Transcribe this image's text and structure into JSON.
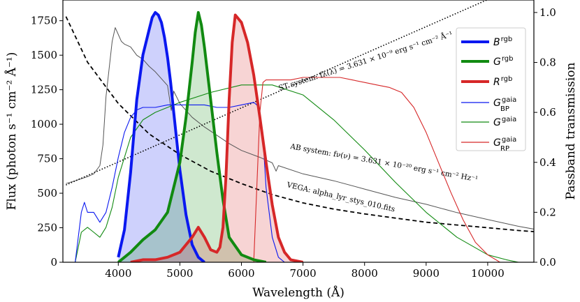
{
  "chart_data": {
    "type": "line",
    "xlabel": "Wavelength  (Å)",
    "ylabel_left": "Flux  (photon s⁻¹ cm⁻² Å⁻¹)",
    "ylabel_right": "Passband transmission",
    "xlim": [
      3100,
      10750
    ],
    "ylim_left": [
      0,
      1900
    ],
    "ylim_right": [
      0,
      1.05
    ],
    "x_ticks": [
      4000,
      5000,
      6000,
      7000,
      8000,
      9000,
      10000
    ],
    "y_ticks_left": [
      0,
      250,
      500,
      750,
      1000,
      1250,
      1500,
      1750
    ],
    "y_ticks_right": [
      "0.0",
      "0.2",
      "0.4",
      "0.6",
      "0.8",
      "1.0"
    ],
    "y_ticks_right_values": [
      0,
      0.2,
      0.4,
      0.6,
      0.8,
      1.0
    ],
    "legend_placement": "top-right",
    "colors": {
      "blue": "#0a18f0",
      "green": "#118a11",
      "red": "#d62728",
      "gray": "#555555"
    },
    "legend": [
      {
        "base": "B",
        "sup": "rgb",
        "sub": "",
        "style": "thick",
        "color": "#0a18f0"
      },
      {
        "base": "G",
        "sup": "rgb",
        "sub": "",
        "style": "thick",
        "color": "#118a11"
      },
      {
        "base": "R",
        "sup": "rgb",
        "sub": "",
        "style": "thick",
        "color": "#d62728"
      },
      {
        "base": "G",
        "sup": "gaia",
        "sub": "BP",
        "style": "thin",
        "color": "#0a18f0"
      },
      {
        "base": "G",
        "sup": "gaia",
        "sub": "",
        "style": "thin",
        "color": "#118a11"
      },
      {
        "base": "G",
        "sup": "gaia",
        "sub": "RP",
        "style": "thin",
        "color": "#d62728"
      }
    ],
    "annotations": {
      "st": "ST system: fλ(λ) = 3.631 × 10⁻⁹ erg s⁻¹ cm⁻² Å⁻¹",
      "ab": "AB system: fν(ν) = 3.631 × 10⁻²⁰ erg s⁻¹ cm⁻² Hz⁻¹",
      "vega": "VEGA: alpha_lyr_stys_010.fits"
    },
    "series": {
      "B_rgb": {
        "axis": "right",
        "x": [
          4000,
          4100,
          4200,
          4300,
          4400,
          4500,
          4550,
          4600,
          4650,
          4700,
          4750,
          4800,
          4850,
          4900,
          5000,
          5100,
          5200,
          5300,
          5400
        ],
        "y": [
          0.02,
          0.13,
          0.36,
          0.65,
          0.83,
          0.93,
          0.98,
          1.0,
          0.99,
          0.96,
          0.9,
          0.82,
          0.72,
          0.6,
          0.37,
          0.19,
          0.07,
          0.02,
          0.0
        ]
      },
      "G_rgb": {
        "axis": "right",
        "x": [
          4000,
          4200,
          4400,
          4600,
          4800,
          5000,
          5100,
          5200,
          5250,
          5300,
          5350,
          5400,
          5500,
          5600,
          5700,
          5800,
          6000,
          6200,
          6400
        ],
        "y": [
          0.0,
          0.04,
          0.09,
          0.13,
          0.2,
          0.4,
          0.58,
          0.8,
          0.92,
          1.0,
          0.95,
          0.86,
          0.65,
          0.44,
          0.25,
          0.1,
          0.03,
          0.01,
          0.0
        ]
      },
      "R_rgb": {
        "axis": "right",
        "x": [
          4200,
          4400,
          4600,
          4800,
          5000,
          5100,
          5200,
          5300,
          5400,
          5500,
          5600,
          5650,
          5700,
          5750,
          5800,
          5850,
          5900,
          6000,
          6100,
          6200,
          6300,
          6400,
          6500,
          6600,
          6700,
          6800,
          7000
        ],
        "y": [
          0.0,
          0.01,
          0.01,
          0.02,
          0.04,
          0.07,
          0.1,
          0.14,
          0.1,
          0.05,
          0.04,
          0.06,
          0.14,
          0.35,
          0.65,
          0.88,
          0.99,
          0.96,
          0.88,
          0.75,
          0.58,
          0.4,
          0.23,
          0.1,
          0.04,
          0.01,
          0.0
        ]
      },
      "G_gaia_BP": {
        "axis": "right",
        "x": [
          3300,
          3400,
          3450,
          3500,
          3600,
          3700,
          3800,
          3900,
          4000,
          4100,
          4200,
          4300,
          4400,
          4600,
          4800,
          5000,
          5200,
          5400,
          5600,
          5800,
          6000,
          6200,
          6250,
          6300,
          6350,
          6400,
          6500,
          6600,
          6700
        ],
        "y": [
          0.0,
          0.2,
          0.24,
          0.2,
          0.2,
          0.16,
          0.2,
          0.3,
          0.42,
          0.52,
          0.58,
          0.61,
          0.62,
          0.62,
          0.63,
          0.63,
          0.63,
          0.63,
          0.62,
          0.62,
          0.63,
          0.64,
          0.63,
          0.6,
          0.5,
          0.3,
          0.1,
          0.02,
          0.0
        ]
      },
      "G_gaia": {
        "axis": "right",
        "x": [
          3300,
          3400,
          3500,
          3600,
          3700,
          3800,
          3900,
          4000,
          4200,
          4400,
          4600,
          4800,
          5000,
          5500,
          6000,
          6500,
          7000,
          7500,
          8000,
          8500,
          9000,
          9500,
          10000,
          10300,
          10500
        ],
        "y": [
          0.0,
          0.12,
          0.14,
          0.12,
          0.1,
          0.14,
          0.22,
          0.34,
          0.5,
          0.57,
          0.6,
          0.62,
          0.64,
          0.68,
          0.71,
          0.71,
          0.67,
          0.57,
          0.45,
          0.32,
          0.2,
          0.1,
          0.03,
          0.01,
          0.0
        ]
      },
      "G_gaia_RP": {
        "axis": "right",
        "x": [
          6200,
          6250,
          6300,
          6350,
          6400,
          6500,
          6600,
          6800,
          7000,
          7200,
          7400,
          7600,
          7800,
          8000,
          8200,
          8400,
          8600,
          8800,
          9000,
          9200,
          9400,
          9600,
          9800,
          10000,
          10200
        ],
        "y": [
          0.0,
          0.3,
          0.6,
          0.72,
          0.73,
          0.73,
          0.73,
          0.73,
          0.74,
          0.74,
          0.74,
          0.74,
          0.73,
          0.72,
          0.71,
          0.7,
          0.68,
          0.62,
          0.52,
          0.4,
          0.28,
          0.17,
          0.08,
          0.03,
          0.0
        ]
      },
      "VEGA": {
        "axis": "left",
        "x": [
          3150,
          3300,
          3500,
          3600,
          3700,
          3750,
          3800,
          3850,
          3900,
          3950,
          4000,
          4050,
          4100,
          4200,
          4300,
          4400,
          4500,
          4600,
          4700,
          4800,
          4860,
          4900,
          5000,
          5200,
          5400,
          5600,
          5800,
          6000,
          6300,
          6500,
          6563,
          6600,
          7000,
          7500,
          8000,
          8500,
          9000,
          9500,
          10000,
          10500,
          10750
        ],
        "y": [
          570,
          590,
          620,
          640,
          700,
          850,
          1200,
          1400,
          1600,
          1700,
          1650,
          1600,
          1580,
          1560,
          1500,
          1470,
          1420,
          1380,
          1330,
          1280,
          1100,
          1240,
          1150,
          1050,
          980,
          920,
          860,
          810,
          760,
          720,
          660,
          700,
          640,
          590,
          530,
          470,
          420,
          360,
          310,
          260,
          240
        ]
      },
      "ST_system": {
        "axis": "left",
        "x": [
          3150,
          10750
        ],
        "y": [
          560,
          2050
        ]
      },
      "AB_system": {
        "axis": "left",
        "x": [
          3150,
          3500,
          4000,
          4500,
          5000,
          5500,
          6000,
          6500,
          7000,
          7500,
          8000,
          8500,
          9000,
          9500,
          10000,
          10500,
          10750
        ],
        "y": [
          1780,
          1450,
          1150,
          930,
          780,
          660,
          570,
          490,
          430,
          385,
          350,
          320,
          290,
          270,
          250,
          230,
          222
        ]
      }
    }
  }
}
